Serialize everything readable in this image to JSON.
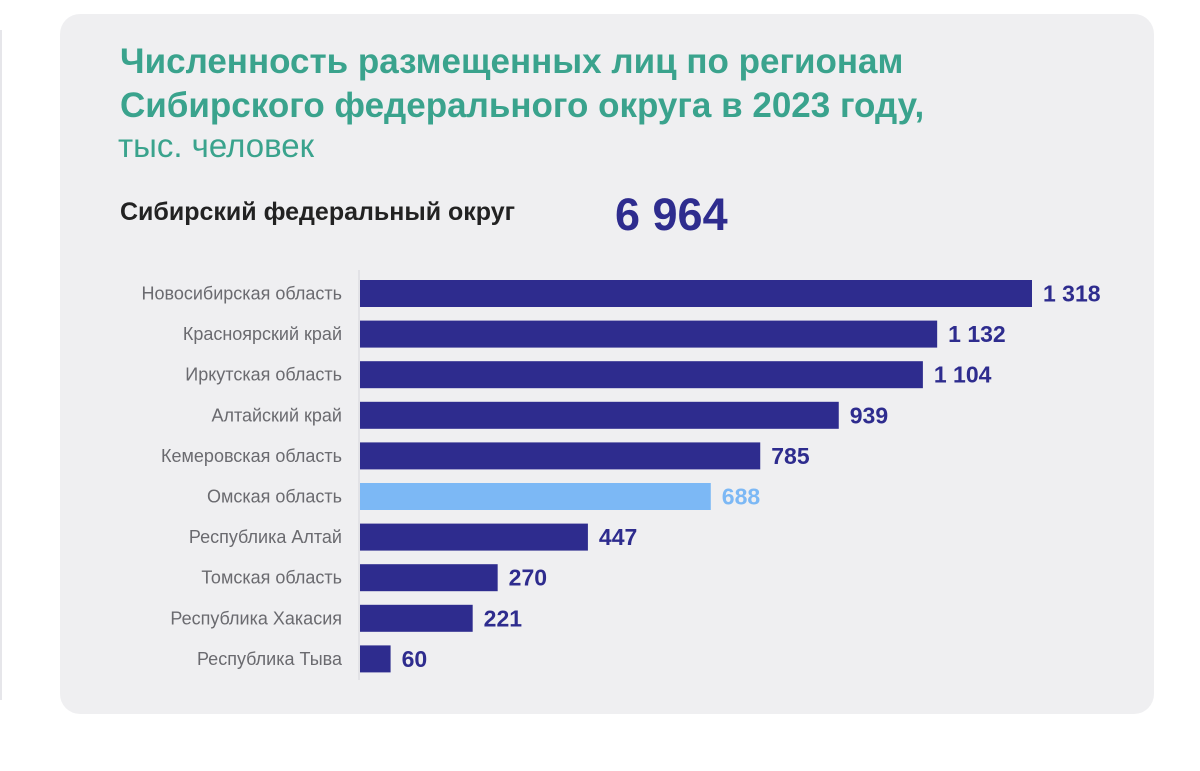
{
  "title": {
    "line1": "Численность размещенных лиц по регионам",
    "line2": "Сибирского федерального округа в 2023 году,",
    "unit": "тыс. человек"
  },
  "total": {
    "label": "Сибирский федеральный округ",
    "value": "6 964"
  },
  "colors": {
    "bar": "#2e2c8e",
    "highlight": "#7cb8f5",
    "title": "#3aa38d",
    "card": "#efeff1"
  },
  "chart_data": {
    "type": "bar",
    "orientation": "horizontal",
    "categories": [
      "Новосибирская область",
      "Красноярский край",
      "Иркутская область",
      "Алтайский край",
      "Кемеровская область",
      "Омская область",
      "Республика Алтай",
      "Томская область",
      "Республика Хакасия",
      "Республика Тыва"
    ],
    "values": [
      1318,
      1132,
      1104,
      939,
      785,
      688,
      447,
      270,
      221,
      60
    ],
    "value_labels": [
      "1 318",
      "1 132",
      "1 104",
      "939",
      "785",
      "688",
      "447",
      "270",
      "221",
      "60"
    ],
    "highlighted": "Омская область",
    "grid": false,
    "xlim": [
      0,
      1318
    ]
  }
}
